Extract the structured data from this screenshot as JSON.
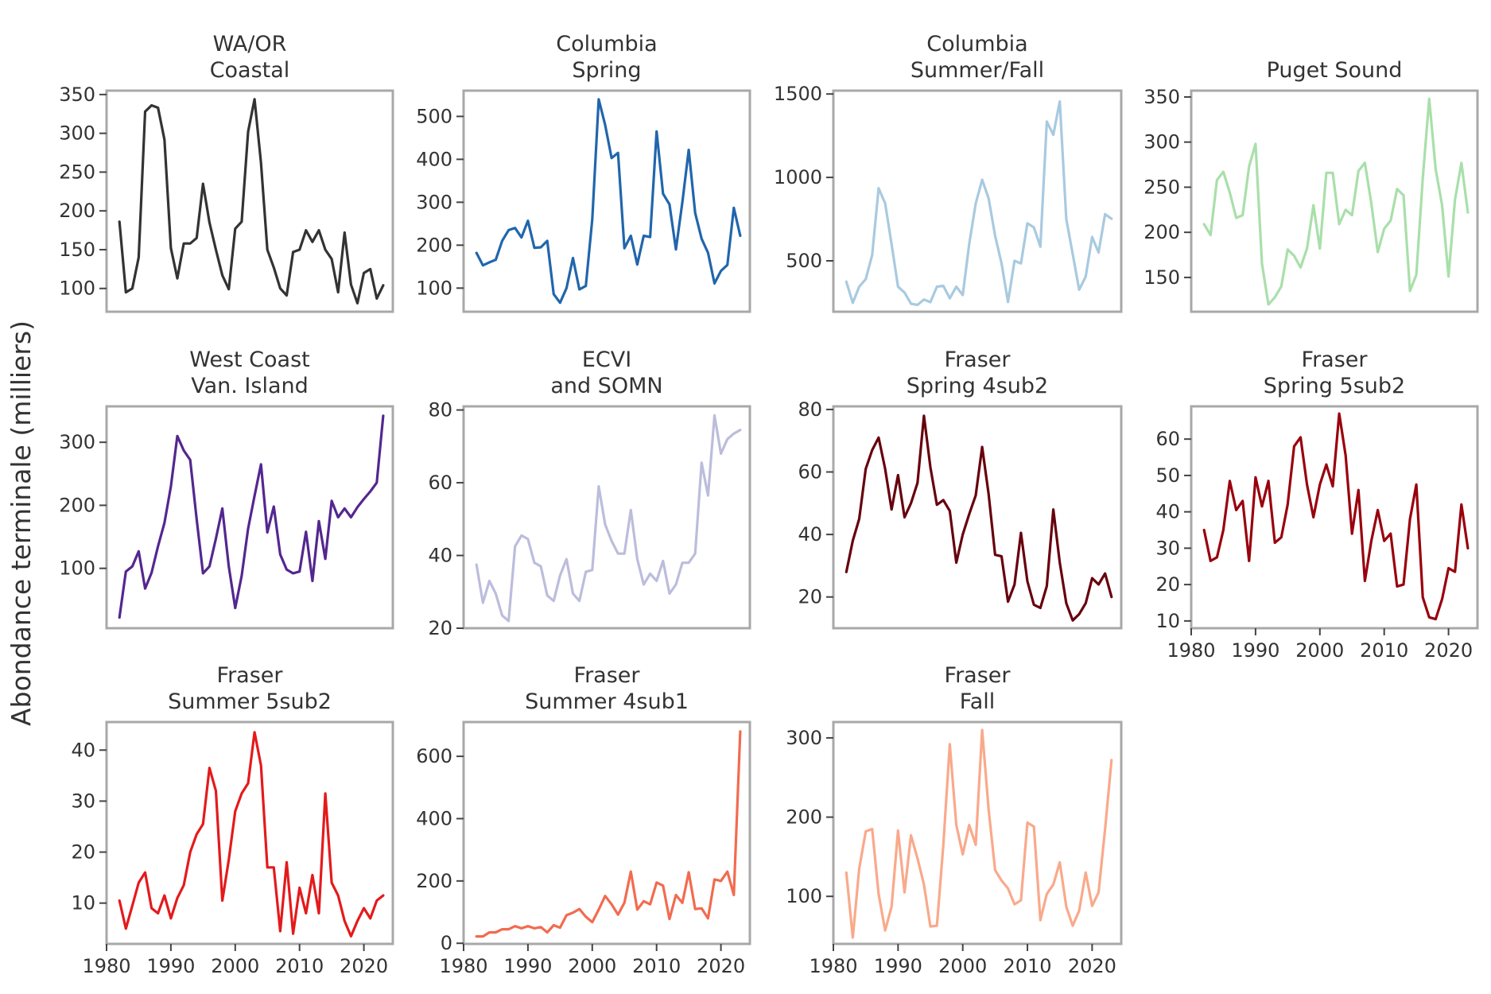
{
  "figure": {
    "ylabel": "Abondance terminale (milliers)"
  },
  "chart_data": [
    {
      "type": "line",
      "title": [
        "WA/OR",
        "Coastal"
      ],
      "color": "#333333",
      "xlim": [
        1980,
        2024.5
      ],
      "ylim": [
        70,
        355
      ],
      "yticks": [
        100,
        150,
        200,
        250,
        300,
        350
      ],
      "xticks": [],
      "x_start": 1982,
      "values": [
        186,
        95,
        100,
        140,
        328,
        336,
        333,
        292,
        152,
        113,
        158,
        158,
        165,
        235,
        185,
        150,
        117,
        99,
        177,
        186,
        302,
        344,
        262,
        150,
        127,
        100,
        91,
        147,
        150,
        175,
        160,
        175,
        150,
        138,
        95,
        172,
        105,
        81,
        120,
        125,
        87,
        104
      ]
    },
    {
      "type": "line",
      "title": [
        "Columbia",
        "Spring"
      ],
      "color": "#2166ac",
      "xlim": [
        1980,
        2024.5
      ],
      "ylim": [
        45,
        560
      ],
      "yticks": [
        100,
        200,
        300,
        400,
        500
      ],
      "xticks": [],
      "x_start": 1982,
      "values": [
        182,
        153,
        160,
        166,
        210,
        235,
        240,
        218,
        257,
        194,
        195,
        210,
        86,
        66,
        100,
        170,
        97,
        105,
        260,
        540,
        480,
        403,
        415,
        193,
        222,
        155,
        222,
        219,
        465,
        320,
        295,
        190,
        300,
        422,
        275,
        215,
        182,
        111,
        140,
        154,
        287,
        222
      ]
    },
    {
      "type": "line",
      "title": [
        "Columbia",
        "Summer/Fall"
      ],
      "color": "#a8cae0",
      "xlim": [
        1980,
        2024.5
      ],
      "ylim": [
        195,
        1520
      ],
      "yticks": [
        500,
        1000,
        1500
      ],
      "xticks": [],
      "x_start": 1982,
      "values": [
        375,
        248,
        345,
        390,
        535,
        935,
        845,
        600,
        345,
        310,
        243,
        236,
        268,
        252,
        345,
        350,
        275,
        345,
        295,
        600,
        843,
        986,
        875,
        650,
        485,
        253,
        500,
        485,
        725,
        700,
        585,
        1335,
        1255,
        1455,
        750,
        540,
        327,
        405,
        643,
        550,
        780,
        752
      ]
    },
    {
      "type": "line",
      "title": [
        "",
        "Puget Sound"
      ],
      "color": "#a9dfaa",
      "xlim": [
        1980,
        2024.5
      ],
      "ylim": [
        112,
        357
      ],
      "yticks": [
        150,
        200,
        250,
        300,
        350
      ],
      "xticks": [],
      "x_start": 1982,
      "values": [
        209,
        197,
        258,
        267,
        244,
        216,
        219,
        273,
        298,
        165,
        120,
        128,
        140,
        181,
        174,
        161,
        182,
        230,
        182,
        266,
        266,
        209,
        225,
        219,
        268,
        277,
        232,
        178,
        204,
        213,
        248,
        241,
        135,
        153,
        260,
        348,
        270,
        230,
        151,
        236,
        277,
        222
      ]
    },
    {
      "type": "line",
      "title": [
        "West Coast",
        "Van. Island"
      ],
      "color": "#54278f",
      "xlim": [
        1980,
        2024.5
      ],
      "ylim": [
        5,
        357
      ],
      "yticks": [
        100,
        200,
        300
      ],
      "xticks": [],
      "x_start": 1982,
      "values": [
        22,
        95,
        103,
        127,
        68,
        93,
        135,
        172,
        230,
        310,
        287,
        272,
        178,
        92,
        103,
        147,
        195,
        103,
        37,
        88,
        163,
        215,
        265,
        157,
        198,
        122,
        98,
        92,
        95,
        158,
        80,
        175,
        115,
        207,
        181,
        195,
        181,
        197,
        210,
        222,
        236,
        342
      ]
    },
    {
      "type": "line",
      "title": [
        "ECVI",
        "and SOMN"
      ],
      "color": "#bcbddc",
      "xlim": [
        1980,
        2024.5
      ],
      "ylim": [
        20,
        81
      ],
      "yticks": [
        20,
        40,
        60,
        80
      ],
      "xticks": [],
      "x_start": 1982,
      "values": [
        37.5,
        27,
        33,
        29.5,
        23.5,
        22,
        42.5,
        45.5,
        44.5,
        38,
        37,
        29,
        27.5,
        34.5,
        39,
        29.5,
        27.5,
        35.5,
        36,
        59,
        48.5,
        44,
        40.5,
        40.5,
        52.5,
        39,
        32,
        35,
        33,
        38.5,
        29.5,
        32,
        38,
        38,
        40.5,
        65.5,
        56.5,
        78.5,
        68,
        72,
        73.5,
        74.5
      ]
    },
    {
      "type": "line",
      "title": [
        "Fraser",
        "Spring 4sub2"
      ],
      "color": "#67000d",
      "xlim": [
        1980,
        2024.5
      ],
      "ylim": [
        10,
        81
      ],
      "yticks": [
        20,
        40,
        60,
        80
      ],
      "xticks": [],
      "x_start": 1982,
      "values": [
        28,
        38,
        45,
        61,
        67,
        71,
        61,
        48,
        59,
        45.5,
        50,
        56.5,
        78,
        61.5,
        49.5,
        51,
        47.5,
        31,
        40,
        46.5,
        52.5,
        68,
        53,
        33.5,
        33,
        18.5,
        24,
        40.5,
        25,
        17.5,
        16.5,
        23.5,
        48,
        31,
        18,
        12.5,
        14.5,
        18,
        26,
        24,
        27.5,
        20
      ]
    },
    {
      "type": "line",
      "title": [
        "Fraser",
        "Spring 5sub2"
      ],
      "color": "#99000d",
      "xlim": [
        1980,
        2024.5
      ],
      "ylim": [
        8,
        69
      ],
      "yticks": [
        10,
        20,
        30,
        40,
        50,
        60
      ],
      "xticks": [
        1980,
        1990,
        2000,
        2010,
        2020
      ],
      "x_start": 1982,
      "values": [
        35,
        26.5,
        27.5,
        35,
        48.5,
        40.5,
        43,
        26.5,
        49.5,
        41.5,
        48.5,
        31.5,
        33,
        42,
        58,
        60.5,
        47.5,
        38.5,
        47.5,
        53,
        47,
        67,
        55.5,
        34,
        46,
        21,
        32,
        40.5,
        32,
        34,
        19.5,
        20,
        38,
        47.5,
        16.5,
        11,
        10.5,
        16,
        24.5,
        23.5,
        42,
        30
      ]
    },
    {
      "type": "line",
      "title": [
        "Fraser",
        "Summer 5sub2"
      ],
      "color": "#e41a1c",
      "xlim": [
        1980,
        2024.5
      ],
      "ylim": [
        2,
        45.5
      ],
      "yticks": [
        10,
        20,
        30,
        40
      ],
      "xticks": [
        1980,
        1990,
        2000,
        2010,
        2020
      ],
      "x_start": 1982,
      "values": [
        10.5,
        5,
        9.5,
        14,
        16,
        9,
        8,
        11.5,
        7,
        11,
        13.5,
        20,
        23.5,
        25.5,
        36.5,
        32,
        10.5,
        18.5,
        28,
        31.5,
        33.5,
        43.5,
        37,
        17,
        17,
        4.5,
        18,
        4,
        13,
        8,
        15.5,
        8,
        31.5,
        14,
        11.5,
        6.5,
        3.5,
        6.5,
        9,
        7,
        10.5,
        11.5
      ]
    },
    {
      "type": "line",
      "title": [
        "Fraser",
        "Summer 4sub1"
      ],
      "color": "#f26b4f",
      "xlim": [
        1980,
        2024.5
      ],
      "ylim": [
        -2,
        710
      ],
      "yticks": [
        0,
        200,
        400,
        600
      ],
      "xticks": [
        1980,
        1990,
        2000,
        2010,
        2020
      ],
      "x_start": 1982,
      "values": [
        22,
        22,
        35,
        35,
        45,
        45,
        55,
        48,
        55,
        48,
        52,
        35,
        58,
        50,
        90,
        98,
        110,
        85,
        68,
        108,
        152,
        125,
        92,
        130,
        230,
        108,
        135,
        125,
        195,
        185,
        78,
        155,
        130,
        228,
        110,
        112,
        80,
        205,
        200,
        230,
        155,
        680
      ]
    },
    {
      "type": "line",
      "title": [
        "Fraser",
        "Fall"
      ],
      "color": "#f9a98b",
      "xlim": [
        1980,
        2024.5
      ],
      "ylim": [
        40,
        320
      ],
      "yticks": [
        100,
        200,
        300
      ],
      "xticks": [
        1980,
        1990,
        2000,
        2010,
        2020
      ],
      "x_start": 1982,
      "values": [
        130,
        48,
        135,
        182,
        185,
        103,
        57,
        87,
        183,
        105,
        177,
        148,
        115,
        62,
        63,
        165,
        292,
        190,
        153,
        190,
        165,
        310,
        210,
        133,
        120,
        110,
        90,
        95,
        193,
        188,
        70,
        103,
        115,
        143,
        87,
        63,
        82,
        130,
        88,
        105,
        185,
        272
      ]
    }
  ]
}
